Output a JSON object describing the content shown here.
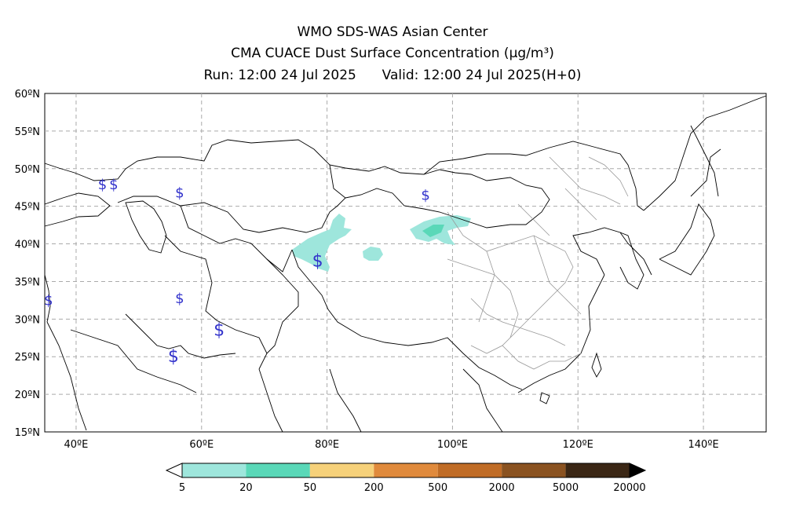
{
  "title": {
    "line1": "WMO SDS-WAS Asian Center",
    "line2": "CMA CUACE Dust Surface Concentration (μg/m³)",
    "run": "Run: 12:00 24 Jul 2025",
    "valid": "Valid: 12:00 24 Jul 2025(H+0)"
  },
  "map": {
    "lon_range": [
      35,
      150
    ],
    "lat_range": [
      15,
      60
    ],
    "lat_ticks": [
      "60ºN",
      "55ºN",
      "50ºN",
      "45ºN",
      "40ºN",
      "35ºN",
      "30ºN",
      "25ºN",
      "20ºN",
      "15ºN"
    ],
    "lon_ticks": [
      "40ºE",
      "60ºE",
      "80ºE",
      "100ºE",
      "120ºE",
      "140ºE"
    ],
    "grid": "dashed",
    "symbol": "$",
    "symbol_color": "#3333cc",
    "dust_color_low": "#9ee6dc",
    "dust_color_mid": "#5ad8b8"
  },
  "colorbar": {
    "labels": [
      "5",
      "20",
      "50",
      "200",
      "500",
      "2000",
      "5000",
      "20000"
    ],
    "colors": [
      "#9ee6dc",
      "#5ad8b8",
      "#f6d17a",
      "#e08a3c",
      "#c06c26",
      "#8a5220",
      "#3a2614"
    ]
  }
}
